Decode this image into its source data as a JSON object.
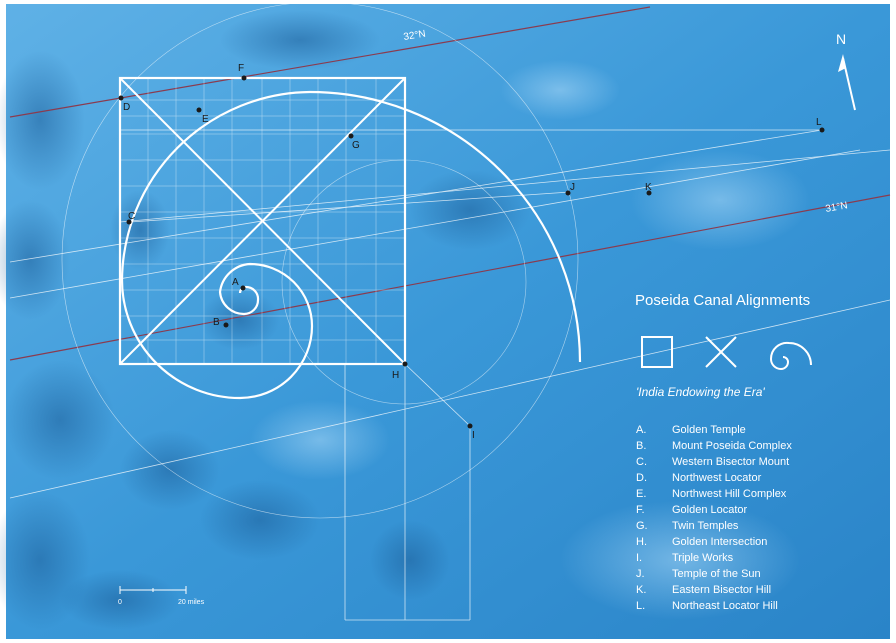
{
  "legend": {
    "title": "Poseida Canal Alignments",
    "subtitle": "'India Endowing the Era'",
    "symbol_icons": [
      "square-icon",
      "x-cross-icon",
      "spiral-icon"
    ],
    "items": [
      {
        "letter": "A.",
        "name": "Golden Temple"
      },
      {
        "letter": "B.",
        "name": "Mount Poseida Complex"
      },
      {
        "letter": "C.",
        "name": "Western Bisector Mount"
      },
      {
        "letter": "D.",
        "name": "Northwest Locator"
      },
      {
        "letter": "E.",
        "name": "Northwest Hill Complex"
      },
      {
        "letter": "F.",
        "name": "Golden Locator"
      },
      {
        "letter": "G.",
        "name": "Twin Temples"
      },
      {
        "letter": "H.",
        "name": "Golden Intersection"
      },
      {
        "letter": "I.",
        "name": "Triple Works"
      },
      {
        "letter": "J.",
        "name": "Temple of the Sun"
      },
      {
        "letter": "K.",
        "name": "Eastern Bisector Hill"
      },
      {
        "letter": "L.",
        "name": "Northeast Locator Hill"
      }
    ]
  },
  "latitude_labels": {
    "north": "32°N",
    "south": "31°N"
  },
  "north_arrow_label": "N",
  "scale_bar": {
    "start": "0",
    "end": "20 miles"
  },
  "site_markers": [
    "A",
    "B",
    "C",
    "D",
    "E",
    "F",
    "G",
    "H",
    "I",
    "J",
    "K",
    "L"
  ],
  "colors": {
    "ocean": "#2f8fd3",
    "ocean_dark": "#1f6fb5",
    "lines": "#ffffff",
    "latitude_lines": "#8a3b4f",
    "markers": "#1a1a1a"
  }
}
